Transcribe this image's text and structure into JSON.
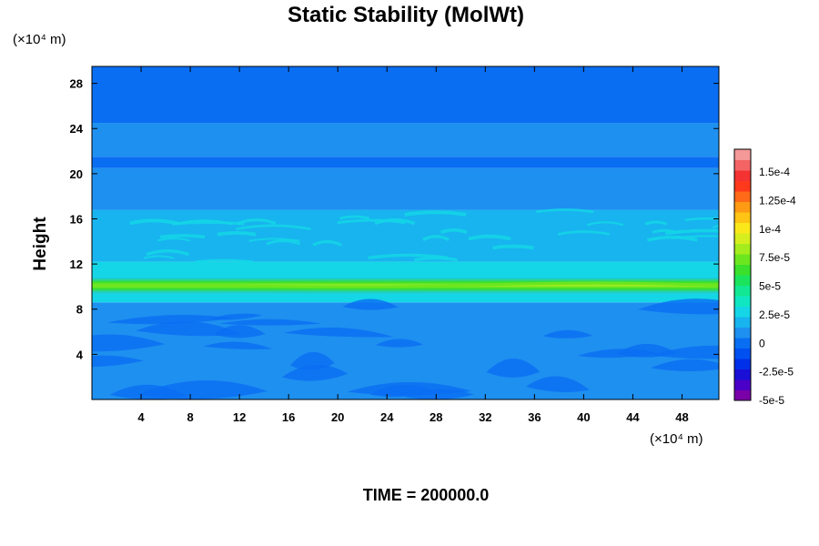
{
  "chart_data": {
    "type": "heatmap",
    "title": "Static Stability (MolWt)",
    "ylabel": "Height",
    "x_units_label": "(×10⁴ m)",
    "y_units_label": "(×10⁴ m)",
    "xlim": [
      0,
      51
    ],
    "ylim": [
      0,
      29.5
    ],
    "x_ticks": [
      "4",
      "8",
      "12",
      "16",
      "20",
      "24",
      "28",
      "32",
      "36",
      "40",
      "44",
      "48"
    ],
    "y_ticks": [
      "4",
      "8",
      "12",
      "16",
      "20",
      "24",
      "28"
    ],
    "x_tick_values": [
      4,
      8,
      12,
      16,
      20,
      24,
      28,
      32,
      36,
      40,
      44,
      48
    ],
    "y_tick_values": [
      4,
      8,
      12,
      16,
      20,
      24,
      28
    ],
    "footer": "TIME = 200000.0",
    "colorbar": {
      "tick_labels": [
        "1.5e-4",
        "1.25e-4",
        "1e-4",
        "7.5e-5",
        "5e-5",
        "2.5e-5",
        "0",
        "-2.5e-5",
        "-5e-5"
      ],
      "tick_values": [
        0.00015,
        0.000125,
        0.0001,
        7.5e-05,
        5e-05,
        2.5e-05,
        0,
        -2.5e-05,
        -5e-05
      ],
      "range": [
        -5e-05,
        0.00017
      ],
      "colors": [
        "#7a00a8",
        "#4b00c8",
        "#1a0fd6",
        "#0030e8",
        "#0050f0",
        "#0a6ef2",
        "#1e90f0",
        "#18b4ef",
        "#14d6e6",
        "#10e6c2",
        "#12e894",
        "#1be45c",
        "#3ae02c",
        "#6ce61e",
        "#a4ec1e",
        "#d6ee1e",
        "#fbe81a",
        "#ffc414",
        "#ff9a14",
        "#ff6a18",
        "#ff3a1c",
        "#f43232",
        "#f46464",
        "#f49898"
      ]
    },
    "layers": [
      {
        "y_range": [
          0,
          8.6
        ],
        "value": 8e-06,
        "pattern": "dark-swirls"
      },
      {
        "y_range": [
          8.6,
          9.4
        ],
        "value": 2.5e-05
      },
      {
        "y_range": [
          9.4,
          10.8
        ],
        "value": 6e-05,
        "peak": 7.5e-05
      },
      {
        "y_range": [
          10.8,
          12.2
        ],
        "value": 2.8e-05
      },
      {
        "y_range": [
          12.2,
          16.8
        ],
        "value": 1.8e-05,
        "pattern": "light-streaks"
      },
      {
        "y_range": [
          16.8,
          20.5
        ],
        "value": 1e-05
      },
      {
        "y_range": [
          20.5,
          21.5
        ],
        "value": 4e-06
      },
      {
        "y_range": [
          21.5,
          24.5
        ],
        "value": 1.2e-05
      },
      {
        "y_range": [
          24.5,
          29.5
        ],
        "value": 2e-06
      }
    ]
  }
}
